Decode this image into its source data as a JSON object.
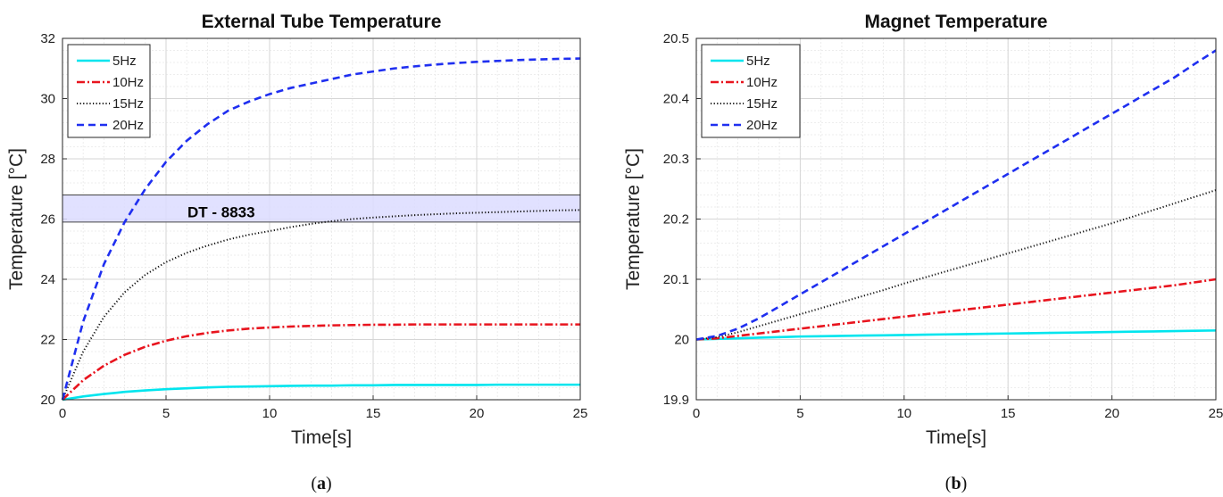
{
  "chart_data": [
    {
      "type": "line",
      "panel_label": "(a)",
      "panel_letter": "a",
      "title": "External Tube Temperature",
      "xlabel": "Time[s]",
      "ylabel": "Temperature [°C]",
      "xlim": [
        0,
        25
      ],
      "ylim": [
        20,
        32
      ],
      "xticks": [
        "0",
        "5",
        "10",
        "15",
        "20",
        "25"
      ],
      "yticks": [
        "20",
        "22",
        "24",
        "26",
        "28",
        "30",
        "32"
      ],
      "grid": true,
      "minor_grid": true,
      "legend_position": "top-left",
      "x": [
        0,
        1,
        2,
        3,
        4,
        5,
        6,
        7,
        8,
        9,
        10,
        11,
        12,
        13,
        14,
        15,
        16,
        17,
        18,
        19,
        20,
        21,
        22,
        23,
        24,
        25
      ],
      "series": [
        {
          "name": "5Hz",
          "color": "#00e5ee",
          "dash": "solid",
          "values": [
            20.0,
            20.11,
            20.19,
            20.26,
            20.31,
            20.35,
            20.38,
            20.41,
            20.43,
            20.44,
            20.45,
            20.46,
            20.47,
            20.47,
            20.48,
            20.48,
            20.49,
            20.49,
            20.49,
            20.49,
            20.49,
            20.5,
            20.5,
            20.5,
            20.5,
            20.5
          ]
        },
        {
          "name": "10Hz",
          "color": "#e8141e",
          "dash": "dashdot",
          "values": [
            20.0,
            20.65,
            21.13,
            21.49,
            21.76,
            21.96,
            22.11,
            22.22,
            22.3,
            22.36,
            22.4,
            22.43,
            22.45,
            22.47,
            22.48,
            22.49,
            22.49,
            22.5,
            22.5,
            22.5,
            22.5,
            22.5,
            22.5,
            22.5,
            22.5,
            22.5
          ]
        },
        {
          "name": "15Hz",
          "color": "#111111",
          "dash": "dotted",
          "values": [
            20.0,
            21.6,
            22.75,
            23.57,
            24.15,
            24.57,
            24.88,
            25.12,
            25.32,
            25.48,
            25.6,
            25.73,
            25.84,
            25.93,
            26.0,
            26.05,
            26.09,
            26.13,
            26.16,
            26.19,
            26.21,
            26.23,
            26.25,
            26.27,
            26.29,
            26.3
          ]
        },
        {
          "name": "20Hz",
          "color": "#1f2ff0",
          "dash": "dashed",
          "values": [
            20.0,
            22.6,
            24.5,
            25.9,
            27.0,
            27.9,
            28.6,
            29.15,
            29.6,
            29.9,
            30.15,
            30.35,
            30.5,
            30.65,
            30.8,
            30.9,
            31.0,
            31.07,
            31.13,
            31.18,
            31.22,
            31.25,
            31.28,
            31.3,
            31.32,
            31.33
          ]
        }
      ],
      "annotations": [
        {
          "type": "band",
          "text": "DT - 8833",
          "y_range": [
            25.9,
            26.8
          ],
          "fill": "#dcdcff",
          "stroke": "#444444"
        }
      ]
    },
    {
      "type": "line",
      "panel_label": "(b)",
      "panel_letter": "b",
      "title": "Magnet Temperature",
      "xlabel": "Time[s]",
      "ylabel": "Temperature [°C]",
      "xlim": [
        0,
        25
      ],
      "ylim": [
        19.9,
        20.5
      ],
      "xticks": [
        "0",
        "5",
        "10",
        "15",
        "20",
        "25"
      ],
      "yticks": [
        "19.9",
        "20",
        "20.1",
        "20.2",
        "20.3",
        "20.4",
        "20.5"
      ],
      "grid": true,
      "minor_grid": true,
      "legend_position": "top-left",
      "x": [
        0,
        1,
        2,
        3,
        4,
        5,
        6,
        7,
        8,
        9,
        10,
        11,
        12,
        13,
        14,
        15,
        16,
        17,
        18,
        19,
        20,
        21,
        22,
        23,
        24,
        25
      ],
      "series": [
        {
          "name": "5Hz",
          "color": "#00e5ee",
          "dash": "solid",
          "values": [
            20.0,
            20.001,
            20.002,
            20.003,
            20.004,
            20.005,
            20.0055,
            20.006,
            20.0065,
            20.007,
            20.0075,
            20.008,
            20.0085,
            20.009,
            20.0095,
            20.01,
            20.0105,
            20.011,
            20.0115,
            20.012,
            20.0125,
            20.013,
            20.0135,
            20.014,
            20.0145,
            20.015
          ]
        },
        {
          "name": "10Hz",
          "color": "#e8141e",
          "dash": "dashdot",
          "values": [
            20.0,
            20.002,
            20.006,
            20.01,
            20.014,
            20.018,
            20.022,
            20.026,
            20.03,
            20.034,
            20.038,
            20.042,
            20.046,
            20.05,
            20.054,
            20.058,
            20.062,
            20.066,
            20.07,
            20.074,
            20.078,
            20.082,
            20.086,
            20.09,
            20.095,
            20.1
          ]
        },
        {
          "name": "15Hz",
          "color": "#111111",
          "dash": "dotted",
          "values": [
            20.0,
            20.004,
            20.012,
            20.022,
            20.032,
            20.042,
            20.052,
            20.062,
            20.072,
            20.082,
            20.093,
            20.103,
            20.113,
            20.123,
            20.133,
            20.143,
            20.153,
            20.163,
            20.173,
            20.183,
            20.193,
            20.204,
            20.215,
            20.226,
            20.237,
            20.248
          ]
        },
        {
          "name": "20Hz",
          "color": "#1f2ff0",
          "dash": "dashed",
          "values": [
            20.0,
            20.006,
            20.018,
            20.035,
            20.055,
            20.075,
            20.095,
            20.115,
            20.135,
            20.155,
            20.175,
            20.195,
            20.215,
            20.235,
            20.255,
            20.275,
            20.295,
            20.315,
            20.335,
            20.355,
            20.375,
            20.395,
            20.415,
            20.435,
            20.458,
            20.48
          ]
        }
      ]
    }
  ]
}
